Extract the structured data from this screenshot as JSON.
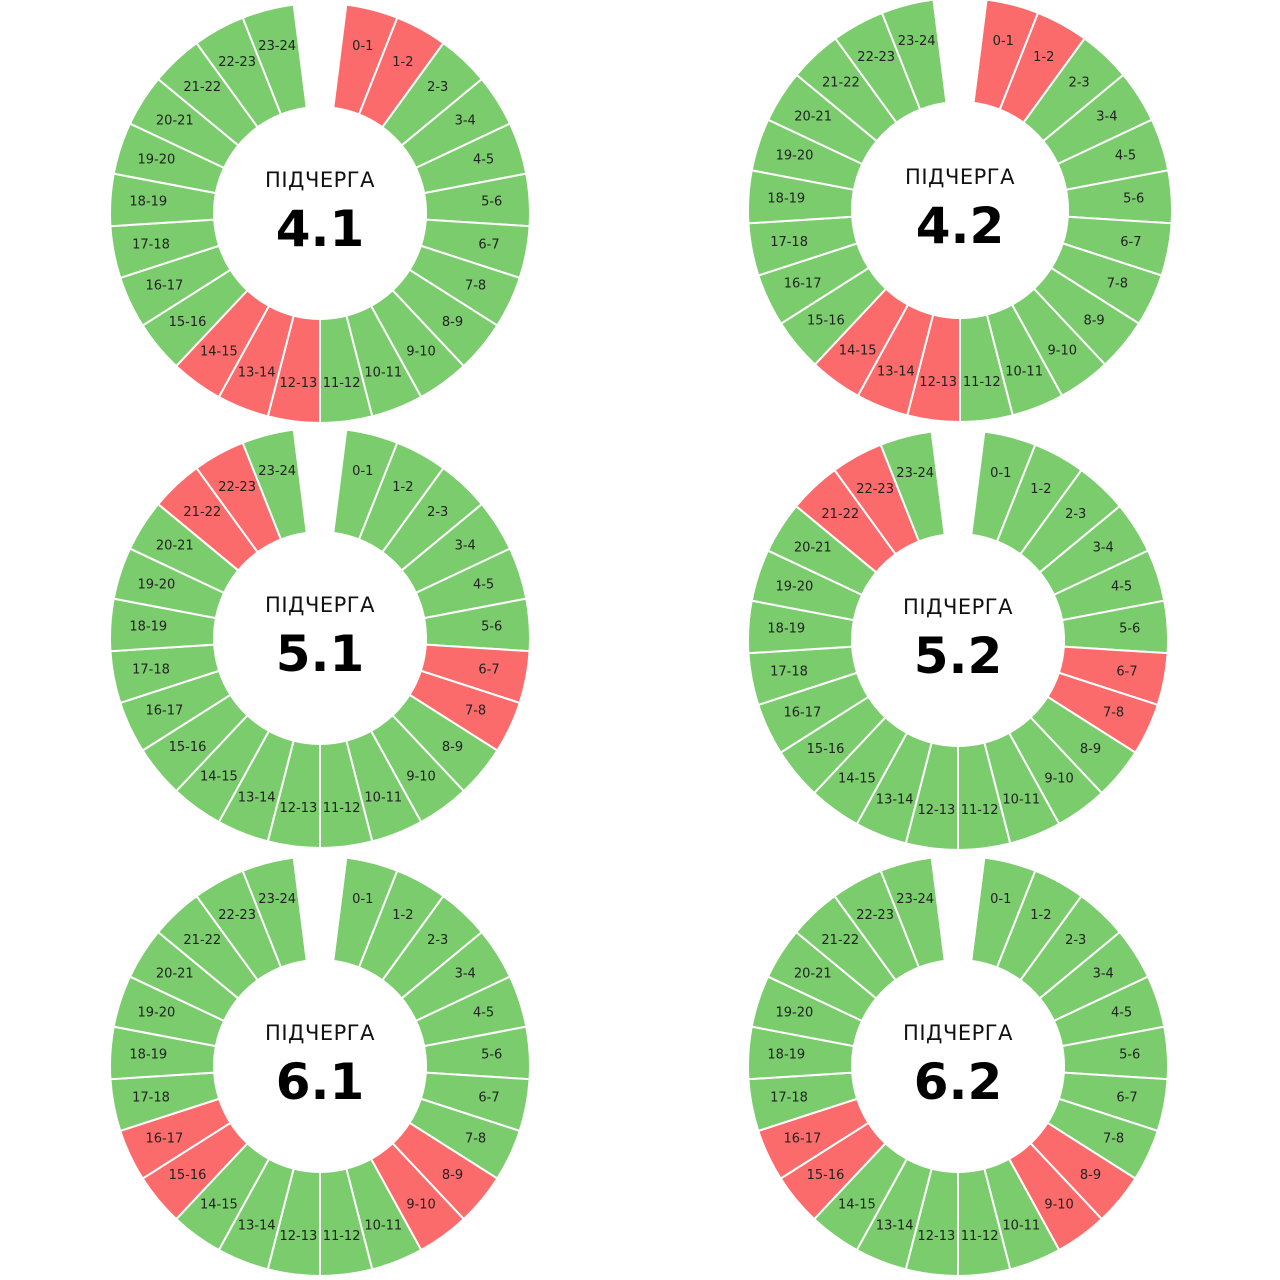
{
  "colors": {
    "on": "#7acc6c",
    "off": "#fc6b6b",
    "divider": "#ffffff"
  },
  "caption": "ПІДЧЕРГА",
  "hour_labels": [
    "0-1",
    "1-2",
    "2-3",
    "3-4",
    "4-5",
    "5-6",
    "6-7",
    "7-8",
    "8-9",
    "9-10",
    "10-11",
    "11-12",
    "12-13",
    "13-14",
    "14-15",
    "15-16",
    "16-17",
    "17-18",
    "18-19",
    "19-20",
    "20-21",
    "21-22",
    "22-23",
    "23-24"
  ],
  "chart_data": [
    {
      "type": "pie",
      "title": "4.1",
      "categories": [
        "0-1",
        "1-2",
        "2-3",
        "3-4",
        "4-5",
        "5-6",
        "6-7",
        "7-8",
        "8-9",
        "9-10",
        "10-11",
        "11-12",
        "12-13",
        "13-14",
        "14-15",
        "15-16",
        "16-17",
        "17-18",
        "18-19",
        "19-20",
        "20-21",
        "21-22",
        "22-23",
        "23-24"
      ],
      "off_hours": [
        "0-1",
        "1-2",
        "12-13",
        "13-14",
        "14-15"
      ]
    },
    {
      "type": "pie",
      "title": "4.2",
      "categories": [
        "0-1",
        "1-2",
        "2-3",
        "3-4",
        "4-5",
        "5-6",
        "6-7",
        "7-8",
        "8-9",
        "9-10",
        "10-11",
        "11-12",
        "12-13",
        "13-14",
        "14-15",
        "15-16",
        "16-17",
        "17-18",
        "18-19",
        "19-20",
        "20-21",
        "21-22",
        "22-23",
        "23-24"
      ],
      "off_hours": [
        "0-1",
        "1-2",
        "12-13",
        "13-14",
        "14-15"
      ]
    },
    {
      "type": "pie",
      "title": "5.1",
      "categories": [
        "0-1",
        "1-2",
        "2-3",
        "3-4",
        "4-5",
        "5-6",
        "6-7",
        "7-8",
        "8-9",
        "9-10",
        "10-11",
        "11-12",
        "12-13",
        "13-14",
        "14-15",
        "15-16",
        "16-17",
        "17-18",
        "18-19",
        "19-20",
        "20-21",
        "21-22",
        "22-23",
        "23-24"
      ],
      "off_hours": [
        "6-7",
        "7-8",
        "21-22",
        "22-23"
      ]
    },
    {
      "type": "pie",
      "title": "5.2",
      "categories": [
        "0-1",
        "1-2",
        "2-3",
        "3-4",
        "4-5",
        "5-6",
        "6-7",
        "7-8",
        "8-9",
        "9-10",
        "10-11",
        "11-12",
        "12-13",
        "13-14",
        "14-15",
        "15-16",
        "16-17",
        "17-18",
        "18-19",
        "19-20",
        "20-21",
        "21-22",
        "22-23",
        "23-24"
      ],
      "off_hours": [
        "6-7",
        "7-8",
        "21-22",
        "22-23"
      ]
    },
    {
      "type": "pie",
      "title": "6.1",
      "categories": [
        "0-1",
        "1-2",
        "2-3",
        "3-4",
        "4-5",
        "5-6",
        "6-7",
        "7-8",
        "8-9",
        "9-10",
        "10-11",
        "11-12",
        "12-13",
        "13-14",
        "14-15",
        "15-16",
        "16-17",
        "17-18",
        "18-19",
        "19-20",
        "20-21",
        "21-22",
        "22-23",
        "23-24"
      ],
      "off_hours": [
        "8-9",
        "9-10",
        "15-16",
        "16-17"
      ]
    },
    {
      "type": "pie",
      "title": "6.2",
      "categories": [
        "0-1",
        "1-2",
        "2-3",
        "3-4",
        "4-5",
        "5-6",
        "6-7",
        "7-8",
        "8-9",
        "9-10",
        "10-11",
        "11-12",
        "12-13",
        "13-14",
        "14-15",
        "15-16",
        "16-17",
        "17-18",
        "18-19",
        "19-20",
        "20-21",
        "21-22",
        "22-23",
        "23-24"
      ],
      "off_hours": [
        "8-9",
        "9-10",
        "15-16",
        "16-17"
      ]
    }
  ]
}
